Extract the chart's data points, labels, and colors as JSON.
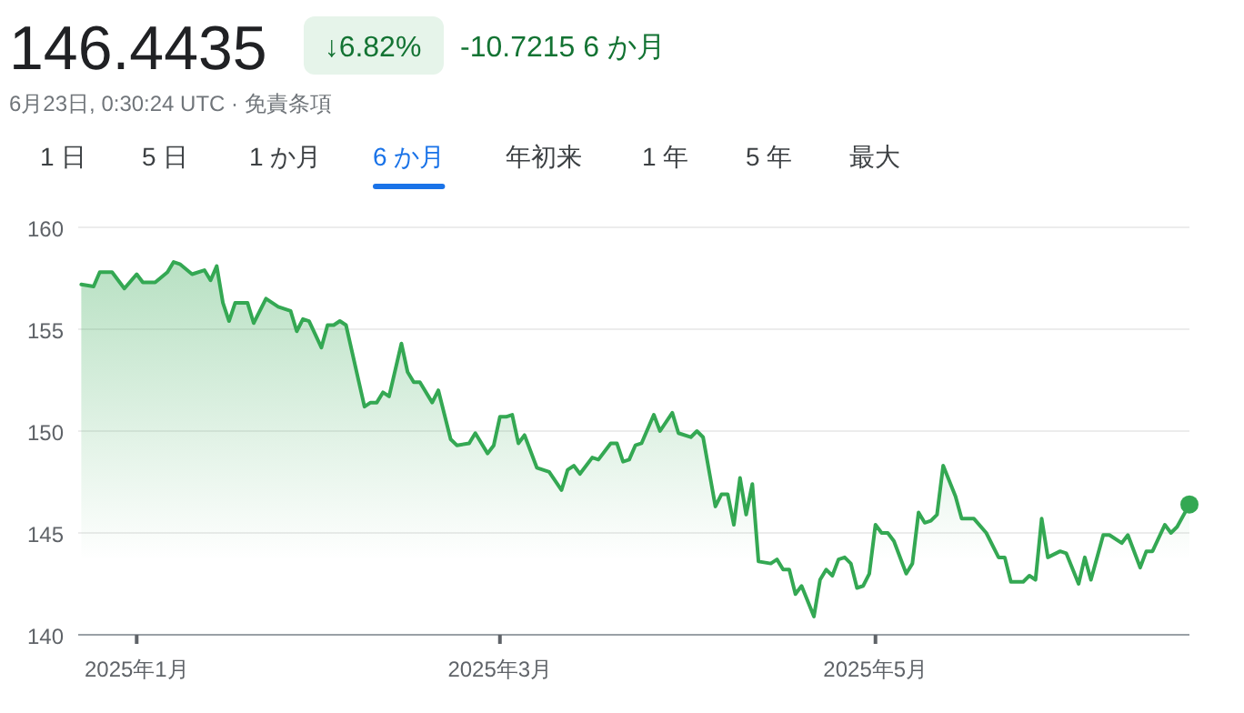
{
  "chart_data": {
    "type": "area",
    "title": "146.4435",
    "subtitle": "6月23日, 0:30:24 UTC · 免責条項",
    "annotations": [
      "↓6.82%",
      "-10.7215 6 か月",
      "1 日",
      "5 日",
      "1 か月",
      "6 か月",
      "年初来",
      "1 年",
      "5 年",
      "最大"
    ],
    "xlim": [
      "2024-12-22T12:00",
      "2025-06-21T00:00"
    ],
    "xticks": [
      {
        "value": "2025-01-01",
        "label": "2025年1月"
      },
      {
        "value": "2025-03-01",
        "label": "2025年3月"
      },
      {
        "value": "2025-05-01",
        "label": "2025年5月"
      }
    ],
    "ylim": [
      140,
      160
    ],
    "yticks": [
      140,
      145,
      150,
      155,
      160
    ],
    "grid": "y",
    "line_style": "solid",
    "series": [
      {
        "color": "#34a853",
        "x": [
          "2024-12-23",
          "2024-12-25",
          "2024-12-26",
          "2024-12-28",
          "2024-12-30",
          "2025-01-01",
          "2025-01-02",
          "2025-01-04",
          "2025-01-06",
          "2025-01-07",
          "2025-01-08",
          "2025-01-10",
          "2025-01-12",
          "2025-01-13",
          "2025-01-14",
          "2025-01-15",
          "2025-01-16",
          "2025-01-17",
          "2025-01-19",
          "2025-01-20",
          "2025-01-22",
          "2025-01-24",
          "2025-01-26",
          "2025-01-27",
          "2025-01-28",
          "2025-01-29",
          "2025-01-31",
          "2025-02-01",
          "2025-02-02",
          "2025-02-03",
          "2025-02-04",
          "2025-02-07",
          "2025-02-08",
          "2025-02-09",
          "2025-02-10",
          "2025-02-11",
          "2025-02-13",
          "2025-02-14",
          "2025-02-15",
          "2025-02-16",
          "2025-02-18",
          "2025-02-19",
          "2025-02-21",
          "2025-02-22",
          "2025-02-24",
          "2025-02-25",
          "2025-02-27",
          "2025-02-28",
          "2025-03-01",
          "2025-03-02",
          "2025-03-03",
          "2025-03-04",
          "2025-03-05",
          "2025-03-07",
          "2025-03-09",
          "2025-03-11",
          "2025-03-12",
          "2025-03-13",
          "2025-03-14",
          "2025-03-16",
          "2025-03-17",
          "2025-03-19",
          "2025-03-20",
          "2025-03-21",
          "2025-03-22",
          "2025-03-23",
          "2025-03-24",
          "2025-03-26",
          "2025-03-27",
          "2025-03-29",
          "2025-03-30",
          "2025-04-01",
          "2025-04-02",
          "2025-04-03",
          "2025-04-05",
          "2025-04-06",
          "2025-04-07",
          "2025-04-08",
          "2025-04-09",
          "2025-04-10",
          "2025-04-11",
          "2025-04-12",
          "2025-04-14",
          "2025-04-15",
          "2025-04-16",
          "2025-04-17",
          "2025-04-18",
          "2025-04-19",
          "2025-04-21",
          "2025-04-22",
          "2025-04-23",
          "2025-04-24",
          "2025-04-25",
          "2025-04-26",
          "2025-04-27",
          "2025-04-28",
          "2025-04-29",
          "2025-04-30",
          "2025-05-01",
          "2025-05-02",
          "2025-05-03",
          "2025-05-04",
          "2025-05-06",
          "2025-05-07",
          "2025-05-08",
          "2025-05-09",
          "2025-05-10",
          "2025-05-11",
          "2025-05-12",
          "2025-05-14",
          "2025-05-15",
          "2025-05-17",
          "2025-05-19",
          "2025-05-21",
          "2025-05-22",
          "2025-05-23",
          "2025-05-25",
          "2025-05-26",
          "2025-05-27",
          "2025-05-28",
          "2025-05-29",
          "2025-05-31",
          "2025-06-01",
          "2025-06-03",
          "2025-06-04",
          "2025-06-05",
          "2025-06-07",
          "2025-06-08",
          "2025-06-10",
          "2025-06-11",
          "2025-06-13",
          "2025-06-14",
          "2025-06-15",
          "2025-06-17",
          "2025-06-18",
          "2025-06-19",
          "2025-06-21"
        ],
        "values": [
          157.2,
          157.1,
          157.8,
          157.8,
          157.0,
          157.7,
          157.3,
          157.3,
          157.8,
          158.3,
          158.2,
          157.7,
          157.9,
          157.4,
          158.1,
          156.3,
          155.4,
          156.3,
          156.3,
          155.3,
          156.5,
          156.1,
          155.9,
          154.9,
          155.5,
          155.4,
          154.1,
          155.2,
          155.2,
          155.4,
          155.2,
          151.2,
          151.4,
          151.4,
          151.9,
          151.7,
          154.3,
          152.9,
          152.4,
          152.4,
          151.4,
          152.0,
          149.6,
          149.3,
          149.4,
          149.9,
          148.9,
          149.3,
          150.7,
          150.7,
          150.8,
          149.4,
          149.8,
          148.2,
          148.0,
          147.1,
          148.1,
          148.3,
          147.9,
          148.7,
          148.6,
          149.4,
          149.4,
          148.5,
          148.6,
          149.3,
          149.4,
          150.8,
          150.0,
          150.9,
          149.9,
          149.7,
          150.0,
          149.7,
          146.3,
          146.9,
          146.9,
          145.4,
          147.7,
          145.9,
          147.4,
          143.6,
          143.5,
          143.7,
          143.2,
          143.2,
          142.0,
          142.4,
          140.9,
          142.7,
          143.2,
          142.9,
          143.7,
          143.8,
          143.5,
          142.3,
          142.4,
          143.0,
          145.4,
          145.0,
          145.0,
          144.6,
          143.0,
          143.5,
          146.0,
          145.5,
          145.6,
          145.9,
          148.3,
          146.8,
          145.7,
          145.7,
          145.0,
          143.8,
          143.8,
          142.6,
          142.6,
          142.9,
          142.7,
          145.7,
          143.8,
          144.1,
          144.0,
          142.5,
          143.8,
          142.7,
          144.9,
          144.9,
          144.5,
          144.9,
          143.3,
          144.1,
          144.1,
          145.4,
          145.0,
          145.3,
          146.4
        ]
      }
    ]
  }
}
